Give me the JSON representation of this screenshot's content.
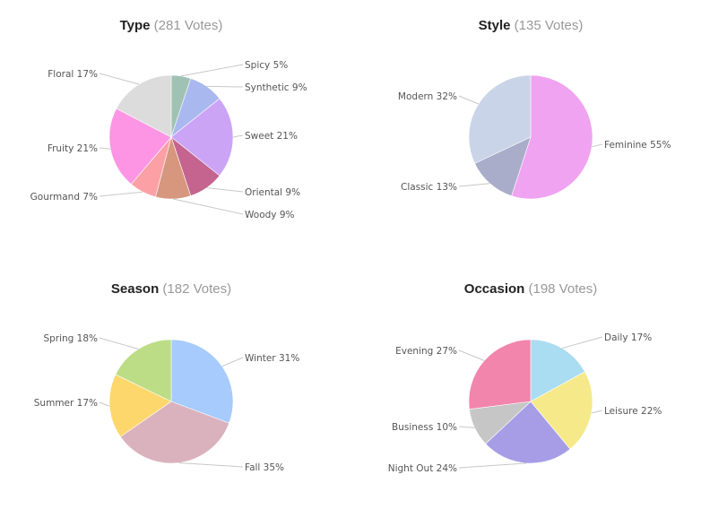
{
  "chart_data": [
    {
      "type": "pie",
      "title": "Type",
      "votes": "(281 Votes)",
      "slices": [
        {
          "label": "Spicy 5%",
          "value": 5,
          "color": "#9fc2b4"
        },
        {
          "label": "Synthetic 9%",
          "value": 9,
          "color": "#a9b8ef"
        },
        {
          "label": "Sweet 21%",
          "value": 21,
          "color": "#cca4f6"
        },
        {
          "label": "Oriental 9%",
          "value": 9,
          "color": "#c4648f"
        },
        {
          "label": "Woody 9%",
          "value": 9,
          "color": "#d6977e"
        },
        {
          "label": "Gourmand 7%",
          "value": 7,
          "color": "#fca0a6"
        },
        {
          "label": "Fruity 21%",
          "value": 21,
          "color": "#fe95e4"
        },
        {
          "label": "Floral 17%",
          "value": 17,
          "color": "#dcdcdc"
        }
      ]
    },
    {
      "type": "pie",
      "title": "Style",
      "votes": "(135 Votes)",
      "slices": [
        {
          "label": "Feminine 55%",
          "value": 55,
          "color": "#f0a3f0"
        },
        {
          "label": "Classic 13%",
          "value": 13,
          "color": "#a9adca"
        },
        {
          "label": "Modern 32%",
          "value": 32,
          "color": "#cad4e8"
        }
      ]
    },
    {
      "type": "pie",
      "title": "Season",
      "votes": "(182 Votes)",
      "slices": [
        {
          "label": "Winter 31%",
          "value": 31,
          "color": "#a6cbfc"
        },
        {
          "label": "Fall 35%",
          "value": 35,
          "color": "#dab2be"
        },
        {
          "label": "Summer 17%",
          "value": 17,
          "color": "#fed76c"
        },
        {
          "label": "Spring 18%",
          "value": 18,
          "color": "#bcdd86"
        }
      ]
    },
    {
      "type": "pie",
      "title": "Occasion",
      "votes": "(198 Votes)",
      "slices": [
        {
          "label": "Daily 17%",
          "value": 17,
          "color": "#aadcf2"
        },
        {
          "label": "Leisure 22%",
          "value": 22,
          "color": "#f5e98a"
        },
        {
          "label": "Night Out 24%",
          "value": 24,
          "color": "#a79de6"
        },
        {
          "label": "Business 10%",
          "value": 10,
          "color": "#c6c6c6"
        },
        {
          "label": "Evening 27%",
          "value": 27,
          "color": "#f285ac"
        }
      ]
    }
  ]
}
